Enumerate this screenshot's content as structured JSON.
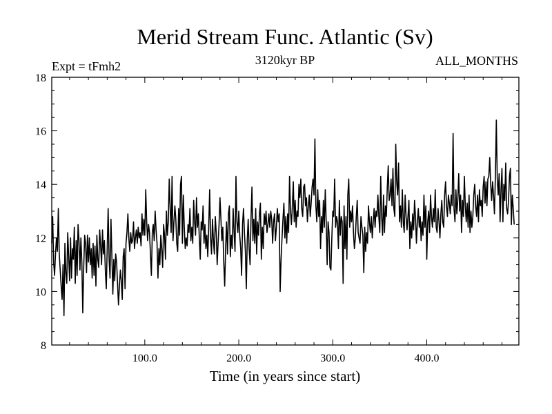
{
  "chart_data": {
    "type": "line",
    "title": "Merid Stream Func. Atlantic (Sv)",
    "subtitle_left": "Expt = tFmh2",
    "subtitle_center": "3120kyr BP",
    "subtitle_right": "ALL_MONTHS",
    "xlabel": "Time (in years since start)",
    "ylabel": "",
    "xlim": [
      1,
      498
    ],
    "ylim": [
      8,
      18
    ],
    "x_ticks": [
      100,
      200,
      300,
      400
    ],
    "x_tick_labels": [
      "100.0",
      "200.0",
      "300.0",
      "400.0"
    ],
    "y_ticks": [
      8,
      10,
      12,
      14,
      16,
      18
    ],
    "y_tick_labels": [
      "8",
      "10",
      "12",
      "14",
      "16",
      "18"
    ],
    "grid": false,
    "series": [
      {
        "name": "Merid Stream Func. Atlantic",
        "color": "#000000",
        "x_start": 1,
        "x_step": 1,
        "values": [
          11.8,
          12.8,
          11.1,
          10.6,
          11.4,
          12.0,
          11.5,
          13.1,
          11.4,
          10.8,
          10.2,
          9.7,
          11.0,
          9.1,
          11.8,
          10.7,
          10.3,
          12.2,
          11.3,
          10.4,
          12.0,
          10.5,
          11.6,
          11.2,
          12.4,
          10.3,
          11.9,
          10.6,
          12.5,
          11.9,
          10.8,
          12.0,
          11.1,
          9.2,
          10.9,
          12.1,
          11.8,
          10.7,
          12.1,
          11.1,
          12.0,
          11.0,
          11.6,
          10.5,
          11.8,
          10.6,
          11.7,
          10.2,
          12.1,
          11.2,
          10.9,
          12.3,
          11.7,
          11.0,
          12.3,
          11.4,
          11.9,
          10.8,
          10.1,
          11.6,
          13.1,
          11.2,
          10.5,
          12.7,
          11.3,
          9.9,
          11.2,
          10.4,
          11.4,
          11.1,
          10.3,
          9.5,
          10.2,
          10.8,
          10.4,
          9.7,
          11.3,
          11.6,
          10.1,
          11.8,
          12.2,
          12.9,
          12.0,
          11.5,
          12.2,
          11.8,
          11.9,
          12.6,
          11.6,
          12.0,
          12.3,
          11.8,
          12.4,
          12.0,
          12.2,
          11.7,
          12.9,
          12.1,
          12.7,
          12.1,
          13.8,
          12.6,
          11.9,
          12.5,
          12.2,
          11.4,
          10.6,
          12.2,
          12.5,
          11.9,
          13.0,
          12.3,
          11.8,
          10.5,
          11.6,
          11.0,
          12.1,
          11.6,
          10.9,
          12.5,
          12.1,
          11.2,
          13.0,
          12.1,
          12.6,
          14.2,
          13.1,
          12.2,
          14.3,
          11.9,
          12.6,
          13.2,
          12.7,
          11.8,
          11.5,
          13.1,
          12.1,
          14.0,
          14.3,
          11.8,
          13.6,
          12.4,
          11.6,
          12.0,
          11.7,
          12.5,
          12.2,
          13.1,
          11.9,
          12.4,
          11.8,
          13.4,
          12.6,
          12.1,
          13.5,
          12.4,
          12.9,
          12.0,
          11.2,
          12.6,
          12.3,
          13.2,
          11.8,
          12.5,
          11.6,
          12.1,
          11.3,
          12.4,
          13.8,
          12.0,
          11.4,
          12.7,
          11.9,
          11.4,
          12.8,
          12.2,
          11.0,
          11.8,
          12.5,
          13.5,
          12.7,
          11.9,
          12.4,
          11.1,
          10.2,
          11.6,
          12.6,
          11.4,
          12.9,
          13.2,
          11.3,
          12.1,
          11.6,
          13.1,
          12.2,
          11.5,
          14.3,
          12.6,
          12.2,
          13.0,
          12.1,
          11.6,
          10.6,
          12.5,
          13.1,
          12.2,
          11.5,
          10.1,
          11.9,
          12.7,
          11.6,
          11.0,
          12.7,
          13.9,
          11.9,
          12.7,
          11.8,
          13.1,
          11.4,
          12.6,
          12.1,
          12.9,
          13.3,
          11.2,
          12.4,
          11.6,
          12.9,
          12.5,
          13.0,
          12.2,
          12.5,
          12.9,
          12.4,
          13.0,
          12.7,
          11.8,
          12.6,
          12.9,
          11.9,
          12.4,
          13.1,
          12.6,
          12.9,
          10.0,
          11.2,
          12.0,
          12.7,
          13.3,
          12.0,
          12.8,
          11.8,
          12.9,
          12.2,
          14.3,
          13.0,
          12.5,
          13.2,
          14.1,
          12.6,
          13.4,
          12.4,
          13.0,
          12.8,
          14.0,
          13.5,
          14.2,
          13.1,
          12.8,
          13.9,
          14.0,
          13.2,
          13.5,
          12.6,
          13.2,
          13.6,
          12.8,
          13.3,
          13.9,
          14.2,
          13.6,
          15.7,
          13.2,
          12.6,
          13.8,
          12.8,
          13.4,
          11.6,
          12.8,
          12.2,
          13.4,
          12.4,
          13.8,
          12.6,
          11.0,
          12.6,
          12.2,
          10.9,
          10.8,
          12.0,
          13.0,
          12.8,
          14.2,
          12.4,
          12.8,
          12.6,
          11.6,
          13.4,
          12.1,
          12.8,
          12.6,
          10.3,
          13.2,
          11.6,
          12.8,
          11.2,
          13.6,
          14.2,
          12.4,
          13.0,
          12.6,
          13.2,
          12.2,
          11.6,
          12.0,
          12.8,
          13.4,
          12.2,
          12.0,
          11.8,
          12.8,
          12.4,
          12.1,
          10.7,
          12.4,
          11.5,
          12.2,
          11.8,
          13.2,
          12.6,
          12.2,
          12.8,
          12.0,
          12.6,
          13.1,
          12.4,
          13.0,
          12.8,
          13.6,
          12.8,
          12.2,
          14.3,
          12.8,
          12.1,
          13.6,
          12.2,
          13.2,
          12.8,
          13.9,
          14.7,
          13.4,
          13.6,
          14.2,
          13.2,
          14.6,
          13.1,
          12.8,
          15.5,
          14.1,
          13.6,
          14.8,
          12.6,
          13.2,
          12.4,
          13.8,
          12.6,
          12.2,
          13.6,
          12.8,
          12.3,
          12.8,
          13.4,
          11.6,
          12.6,
          12.0,
          12.9,
          12.3,
          13.4,
          12.8,
          11.8,
          12.6,
          13.1,
          12.4,
          12.8,
          11.9,
          12.6,
          12.1,
          13.6,
          12.4,
          13.2,
          11.2,
          12.6,
          13.0,
          12.2,
          13.6,
          12.8,
          12.4,
          13.1,
          12.6,
          13.8,
          12.4,
          12.2,
          13.1,
          12.6,
          12.0,
          12.9,
          13.4,
          12.6,
          12.4,
          13.6,
          14.1,
          13.2,
          12.8,
          13.6,
          13.3,
          12.9,
          13.6,
          13.2,
          15.9,
          13.1,
          12.6,
          13.8,
          12.9,
          13.4,
          14.4,
          13.0,
          13.6,
          12.2,
          13.4,
          12.8,
          14.3,
          13.2,
          12.6,
          13.3,
          12.4,
          13.6,
          12.2,
          13.0,
          12.4,
          12.8,
          13.6,
          14.0,
          13.2,
          12.8,
          13.6,
          12.6,
          13.8,
          13.2,
          13.4,
          12.8,
          13.9,
          14.3,
          13.3,
          14.1,
          13.2,
          14.2,
          14.3,
          15.0,
          14.0,
          13.4,
          14.1,
          13.6,
          12.9,
          14.3,
          16.4,
          14.2,
          13.6,
          14.4,
          12.6,
          13.8,
          14.6,
          12.6,
          14.0,
          13.4,
          14.8,
          13.1,
          12.9,
          13.4,
          14.3,
          14.6,
          12.5,
          13.6,
          13.1,
          12.5
        ]
      }
    ]
  }
}
